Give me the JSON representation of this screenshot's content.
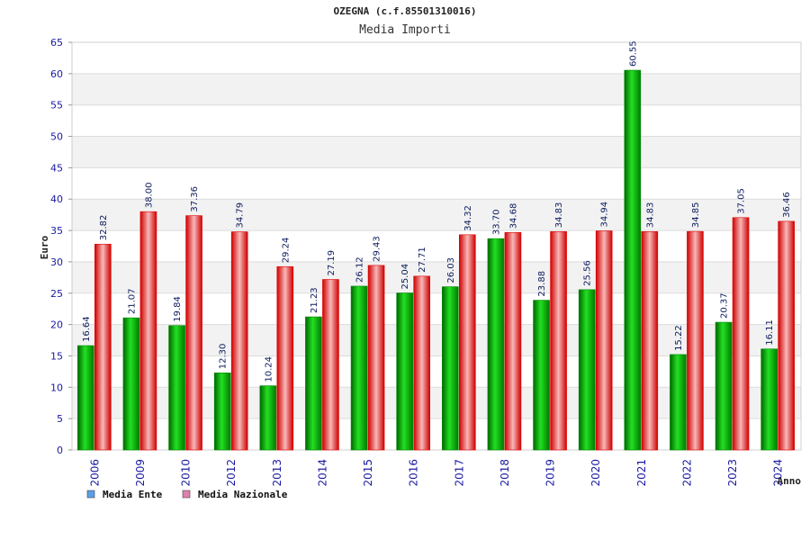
{
  "chart_data": {
    "type": "bar",
    "title": "OZEGNA (c.f.85501310016)",
    "subtitle": "Media Importi",
    "xlabel": "Anno",
    "ylabel": "Euro",
    "ylim": [
      0,
      65
    ],
    "yticks": [
      0,
      5,
      10,
      15,
      20,
      25,
      30,
      35,
      40,
      45,
      50,
      55,
      60,
      65
    ],
    "grid": true,
    "legend": "bottom-left",
    "categories": [
      "2006",
      "2009",
      "2010",
      "2012",
      "2013",
      "2014",
      "2015",
      "2016",
      "2017",
      "2018",
      "2019",
      "2020",
      "2021",
      "2022",
      "2023",
      "2024"
    ],
    "series": [
      {
        "name": "Media Ente",
        "color": "#00b000",
        "legend_color": "#5aa0e8",
        "values": [
          16.64,
          21.07,
          19.84,
          12.3,
          10.24,
          21.23,
          26.12,
          25.04,
          26.03,
          33.7,
          23.88,
          25.56,
          60.55,
          15.22,
          20.37,
          16.11
        ],
        "labels": [
          "16.64",
          "21.07",
          "19.84",
          "12.30",
          "10.24",
          "21.23",
          "26.12",
          "25.04",
          "26.03",
          "33.70",
          "23.88",
          "25.56",
          "60.55",
          "15.22",
          "20.37",
          "16.11"
        ]
      },
      {
        "name": "Media Nazionale",
        "color": "#e01010",
        "legend_color": "#e080b0",
        "values": [
          32.82,
          38.0,
          37.36,
          34.79,
          29.24,
          27.19,
          29.43,
          27.71,
          34.32,
          34.68,
          34.83,
          34.94,
          34.83,
          34.85,
          37.05,
          36.46
        ],
        "labels": [
          "32.82",
          "38.00",
          "37.36",
          "34.79",
          "29.24",
          "27.19",
          "29.43",
          "27.71",
          "34.32",
          "34.68",
          "34.83",
          "34.94",
          "34.83",
          "34.85",
          "37.05",
          "36.46"
        ]
      }
    ]
  }
}
